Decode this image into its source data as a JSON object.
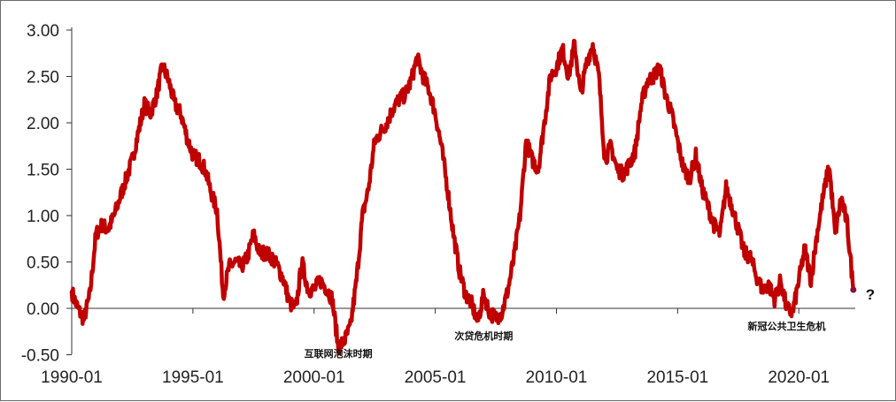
{
  "chart_data": {
    "type": "line",
    "title": "",
    "xlabel": "",
    "ylabel": "",
    "ylim": [
      -0.5,
      3.0
    ],
    "yticks": [
      "3.00",
      "2.50",
      "2.00",
      "1.50",
      "1.00",
      "0.50",
      "0.00",
      "-0.50"
    ],
    "xticks": [
      "1990-01",
      "1995-01",
      "2000-01",
      "2005-01",
      "2010-01",
      "2015-01",
      "2020-01"
    ],
    "grid": false,
    "legend": "none",
    "series": [
      {
        "color": "#c00000",
        "points": [
          [
            "1990-01",
            0.18
          ],
          [
            "1990-04",
            0.0
          ],
          [
            "1990-07",
            -0.12
          ],
          [
            "1990-10",
            0.15
          ],
          [
            "1991-01",
            0.8
          ],
          [
            "1991-04",
            0.9
          ],
          [
            "1991-07",
            0.85
          ],
          [
            "1991-10",
            1.0
          ],
          [
            "1992-01",
            1.2
          ],
          [
            "1992-04",
            1.4
          ],
          [
            "1992-07",
            1.6
          ],
          [
            "1992-10",
            1.9
          ],
          [
            "1993-01",
            2.2
          ],
          [
            "1993-04",
            2.1
          ],
          [
            "1993-07",
            2.3
          ],
          [
            "1993-10",
            2.62
          ],
          [
            "1994-01",
            2.45
          ],
          [
            "1994-04",
            2.2
          ],
          [
            "1994-07",
            2.1
          ],
          [
            "1994-10",
            1.85
          ],
          [
            "1995-01",
            1.65
          ],
          [
            "1995-04",
            1.6
          ],
          [
            "1995-07",
            1.5
          ],
          [
            "1995-10",
            1.25
          ],
          [
            "1996-01",
            1.05
          ],
          [
            "1996-04",
            0.15
          ],
          [
            "1996-07",
            0.45
          ],
          [
            "1996-10",
            0.5
          ],
          [
            "1997-01",
            0.45
          ],
          [
            "1997-04",
            0.55
          ],
          [
            "1997-07",
            0.8
          ],
          [
            "1997-10",
            0.6
          ],
          [
            "1998-01",
            0.6
          ],
          [
            "1998-04",
            0.55
          ],
          [
            "1998-07",
            0.45
          ],
          [
            "1998-10",
            0.3
          ],
          [
            "1999-01",
            0.05
          ],
          [
            "1999-04",
            0.0
          ],
          [
            "1999-07",
            0.5
          ],
          [
            "1999-10",
            0.2
          ],
          [
            "2000-01",
            0.2
          ],
          [
            "2000-04",
            0.3
          ],
          [
            "2000-07",
            0.22
          ],
          [
            "2000-10",
            0.1
          ],
          [
            "2001-01",
            -0.42
          ],
          [
            "2001-04",
            -0.35
          ],
          [
            "2001-07",
            -0.2
          ],
          [
            "2001-10",
            0.3
          ],
          [
            "2002-01",
            1.0
          ],
          [
            "2002-04",
            1.3
          ],
          [
            "2002-07",
            1.8
          ],
          [
            "2002-10",
            1.9
          ],
          [
            "2003-01",
            2.0
          ],
          [
            "2003-04",
            2.15
          ],
          [
            "2003-07",
            2.25
          ],
          [
            "2003-10",
            2.3
          ],
          [
            "2004-01",
            2.45
          ],
          [
            "2004-04",
            2.7
          ],
          [
            "2004-07",
            2.5
          ],
          [
            "2004-10",
            2.35
          ],
          [
            "2005-01",
            2.1
          ],
          [
            "2005-04",
            1.75
          ],
          [
            "2005-07",
            1.3
          ],
          [
            "2005-10",
            0.8
          ],
          [
            "2006-01",
            0.4
          ],
          [
            "2006-04",
            0.15
          ],
          [
            "2006-07",
            0.05
          ],
          [
            "2006-10",
            -0.15
          ],
          [
            "2007-01",
            0.15
          ],
          [
            "2007-04",
            -0.05
          ],
          [
            "2007-07",
            -0.1
          ],
          [
            "2007-10",
            -0.05
          ],
          [
            "2008-01",
            0.2
          ],
          [
            "2008-04",
            0.55
          ],
          [
            "2008-07",
            1.0
          ],
          [
            "2008-10",
            1.8
          ],
          [
            "2009-01",
            1.6
          ],
          [
            "2009-04",
            1.5
          ],
          [
            "2009-07",
            2.0
          ],
          [
            "2009-10",
            2.5
          ],
          [
            "2010-01",
            2.6
          ],
          [
            "2010-04",
            2.8
          ],
          [
            "2010-07",
            2.5
          ],
          [
            "2010-10",
            2.85
          ],
          [
            "2011-01",
            2.3
          ],
          [
            "2011-04",
            2.65
          ],
          [
            "2011-07",
            2.85
          ],
          [
            "2011-10",
            2.5
          ],
          [
            "2012-01",
            1.6
          ],
          [
            "2012-04",
            1.75
          ],
          [
            "2012-07",
            1.5
          ],
          [
            "2012-10",
            1.45
          ],
          [
            "2013-01",
            1.55
          ],
          [
            "2013-04",
            1.7
          ],
          [
            "2013-07",
            2.2
          ],
          [
            "2013-10",
            2.45
          ],
          [
            "2014-01",
            2.5
          ],
          [
            "2014-04",
            2.6
          ],
          [
            "2014-07",
            2.3
          ],
          [
            "2014-10",
            2.1
          ],
          [
            "2015-01",
            1.8
          ],
          [
            "2015-04",
            1.5
          ],
          [
            "2015-07",
            1.4
          ],
          [
            "2015-10",
            1.65
          ],
          [
            "2016-01",
            1.3
          ],
          [
            "2016-04",
            1.1
          ],
          [
            "2016-07",
            0.9
          ],
          [
            "2016-10",
            0.8
          ],
          [
            "2017-01",
            1.3
          ],
          [
            "2017-04",
            1.1
          ],
          [
            "2017-07",
            0.85
          ],
          [
            "2017-10",
            0.6
          ],
          [
            "2018-01",
            0.55
          ],
          [
            "2018-04",
            0.35
          ],
          [
            "2018-07",
            0.2
          ],
          [
            "2018-10",
            0.25
          ],
          [
            "2019-01",
            0.1
          ],
          [
            "2019-04",
            0.3
          ],
          [
            "2019-07",
            0.0
          ],
          [
            "2019-10",
            -0.05
          ],
          [
            "2020-01",
            0.3
          ],
          [
            "2020-04",
            0.65
          ],
          [
            "2020-07",
            0.3
          ],
          [
            "2020-10",
            0.8
          ],
          [
            "2021-01",
            1.2
          ],
          [
            "2021-04",
            1.55
          ],
          [
            "2021-07",
            0.8
          ],
          [
            "2021-10",
            1.2
          ],
          [
            "2022-01",
            0.9
          ],
          [
            "2022-04",
            0.2
          ]
        ]
      }
    ],
    "annotations": [
      {
        "text": "互联网泡沫时期",
        "x": "2001-01"
      },
      {
        "text": "次贷危机时期",
        "x": "2007-01"
      },
      {
        "text": "新冠公共卫生危机",
        "x": "2019-07"
      },
      {
        "text": "?",
        "x": "2022-04"
      }
    ]
  }
}
